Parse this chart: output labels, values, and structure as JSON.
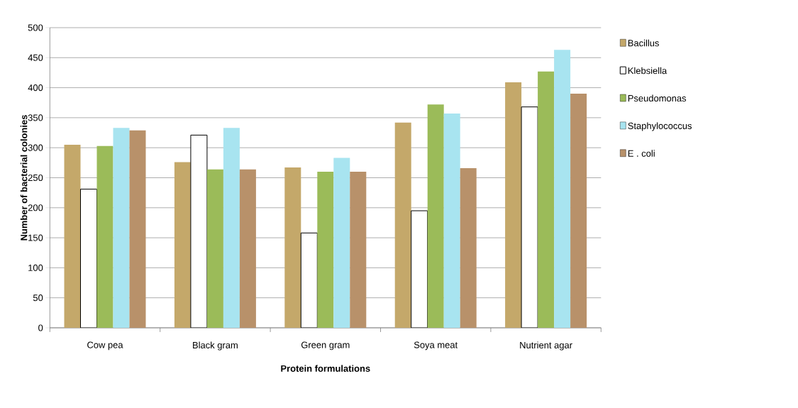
{
  "chart_data": {
    "type": "bar",
    "xlabel": "Protein formulations",
    "ylabel": "Number of bacterial colonies",
    "categories": [
      "Cow pea",
      "Black gram",
      "Green gram",
      "Soya meat",
      "Nutrient agar"
    ],
    "series": [
      {
        "name": "Bacillus",
        "color": "#c4a86a",
        "values": [
          305,
          276,
          267,
          342,
          409
        ]
      },
      {
        "name": "Klebsiella",
        "color": "#ffffff",
        "values": [
          231,
          321,
          158,
          195,
          368
        ]
      },
      {
        "name": "Pseudomonas",
        "color": "#9bbb59",
        "values": [
          303,
          264,
          260,
          372,
          427
        ]
      },
      {
        "name": "Staphylococcus",
        "color": "#a8e4f0",
        "values": [
          333,
          333,
          283,
          357,
          463
        ]
      },
      {
        "name": "E . coli",
        "color": "#b8916a",
        "values": [
          329,
          264,
          260,
          266,
          390
        ]
      }
    ],
    "ylim": [
      0,
      500
    ],
    "yticks": [
      0,
      50,
      100,
      150,
      200,
      250,
      300,
      350,
      400,
      450,
      500
    ],
    "grid": "y",
    "legend": "right"
  }
}
